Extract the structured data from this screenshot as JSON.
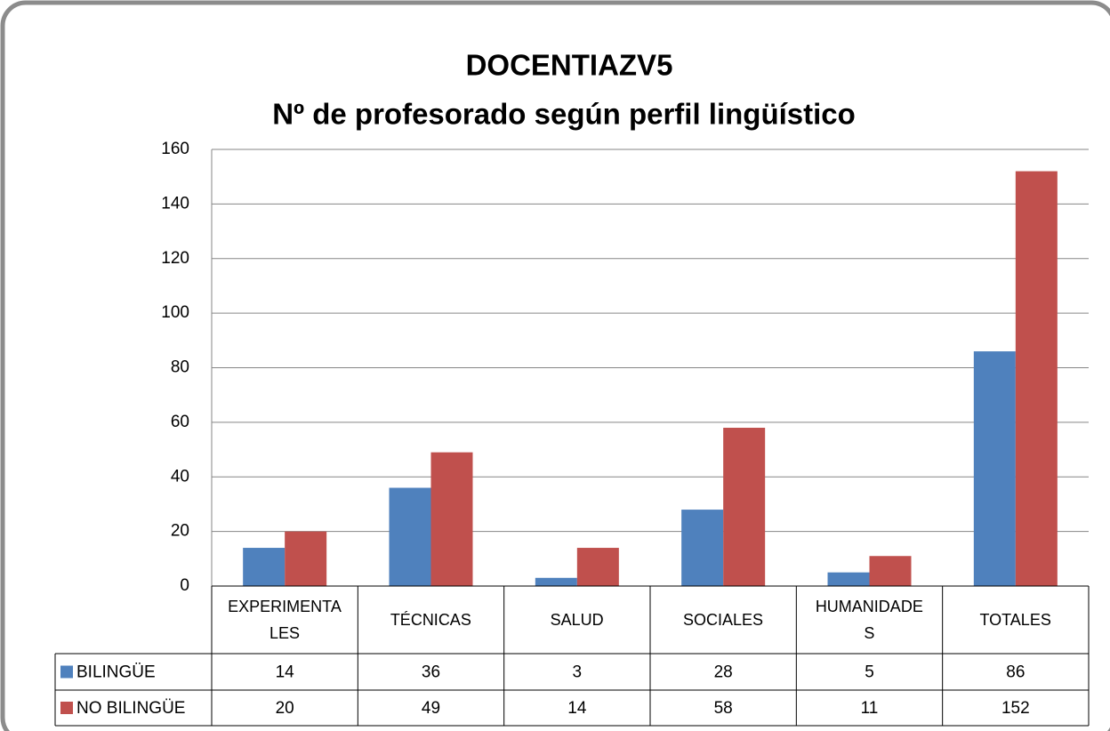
{
  "chart_data": {
    "type": "bar",
    "title": "DOCENTIAZV5",
    "subtitle": "Nº de profesorado según perfil lingüístico",
    "categories": [
      "EXPERIMENTALES",
      "TÉCNICAS",
      "SALUD",
      "SOCIALES",
      "HUMANIDADES",
      "TOTALES"
    ],
    "series": [
      {
        "name": "BILINGÜE",
        "color": "#4f81bd",
        "values": [
          14,
          36,
          3,
          28,
          5,
          86
        ]
      },
      {
        "name": "NO BILINGÜE",
        "color": "#c0504d",
        "values": [
          20,
          49,
          14,
          58,
          11,
          152
        ]
      }
    ],
    "ylim": [
      0,
      160
    ],
    "yticks": [
      0,
      20,
      40,
      60,
      80,
      100,
      120,
      140,
      160
    ],
    "grid": true
  }
}
